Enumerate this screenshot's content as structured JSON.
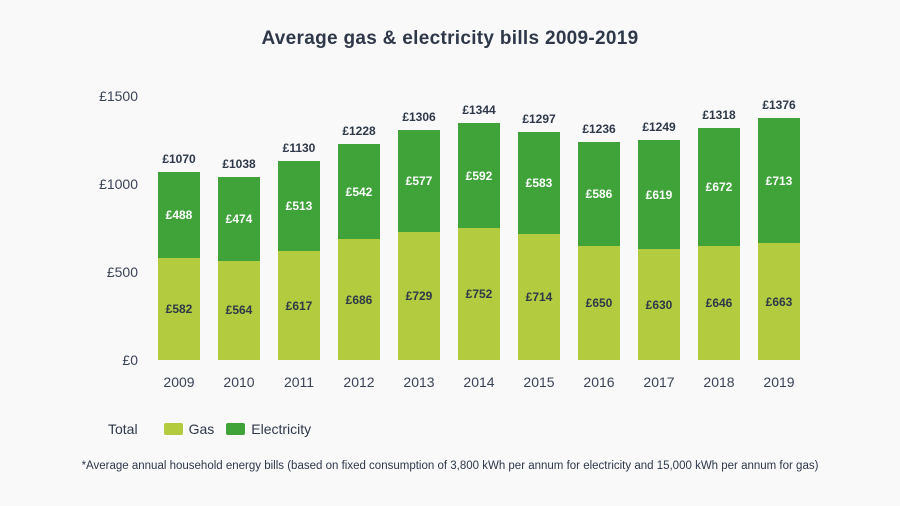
{
  "title": "Average gas & electricity bills 2009-2019",
  "footnote": "*Average annual household energy bills (based on fixed consumption of 3,800 kWh per annum for electricity and 15,000 kWh per annum for gas)",
  "legend": {
    "total_label": "Total",
    "items": [
      {
        "label": "Gas",
        "color": "#b2cb3f"
      },
      {
        "label": "Electricity",
        "color": "#3fa33a"
      }
    ]
  },
  "colors": {
    "gas": "#b2cb3f",
    "electricity": "#3fa33a",
    "text_dark": "#2e3849",
    "text_light": "#ffffff",
    "background": "#f9f9f9"
  },
  "chart_data": {
    "type": "bar",
    "stacked": true,
    "title": "Average gas & electricity bills 2009-2019",
    "currency": "£",
    "categories": [
      "2009",
      "2010",
      "2011",
      "2012",
      "2013",
      "2014",
      "2015",
      "2016",
      "2017",
      "2018",
      "2019"
    ],
    "series": [
      {
        "name": "Gas",
        "color": "#b2cb3f",
        "values": [
          582,
          564,
          617,
          686,
          729,
          752,
          714,
          650,
          630,
          646,
          663
        ]
      },
      {
        "name": "Electricity",
        "color": "#3fa33a",
        "values": [
          488,
          474,
          513,
          542,
          577,
          592,
          583,
          586,
          619,
          672,
          713
        ]
      }
    ],
    "totals": [
      1070,
      1038,
      1130,
      1228,
      1306,
      1344,
      1297,
      1236,
      1249,
      1318,
      1376
    ],
    "xlabel": "",
    "ylabel": "",
    "ylim": [
      0,
      1500
    ],
    "y_ticks": [
      {
        "value": 1500,
        "label": "£1500"
      },
      {
        "value": 1000,
        "label": "£1000"
      },
      {
        "value": 500,
        "label": "£500"
      },
      {
        "value": 0,
        "label": "£0"
      }
    ],
    "grid": false,
    "legend_position": "bottom-left"
  }
}
